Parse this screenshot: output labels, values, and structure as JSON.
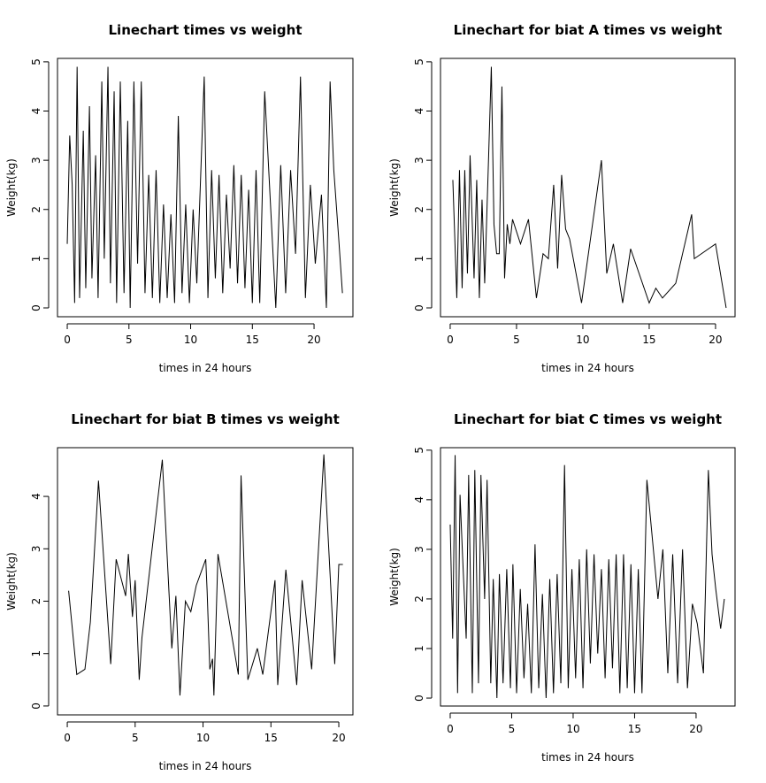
{
  "chart_data": [
    {
      "type": "line",
      "title": "Linechart times vs weight",
      "xlabel": "times in 24 hours",
      "ylabel": "Weight(kg)",
      "color": "#000000",
      "x": [
        0.0,
        0.2,
        0.4,
        0.6,
        0.8,
        1.0,
        1.3,
        1.5,
        1.8,
        2.0,
        2.3,
        2.5,
        2.8,
        3.0,
        3.3,
        3.5,
        3.8,
        4.0,
        4.3,
        4.6,
        4.9,
        5.1,
        5.4,
        5.7,
        6.0,
        6.3,
        6.6,
        6.9,
        7.2,
        7.5,
        7.8,
        8.1,
        8.4,
        8.7,
        9.0,
        9.3,
        9.6,
        9.9,
        10.2,
        10.5,
        10.8,
        11.1,
        11.4,
        11.7,
        12.0,
        12.3,
        12.6,
        12.9,
        13.2,
        13.5,
        13.8,
        14.1,
        14.4,
        14.7,
        15.0,
        15.3,
        15.6,
        16.0,
        16.9,
        17.3,
        17.7,
        18.1,
        18.5,
        18.9,
        19.3,
        19.7,
        20.1,
        20.6,
        21.0,
        21.3,
        21.6,
        22.0,
        22.3
      ],
      "values": [
        1.3,
        3.5,
        2.5,
        0.1,
        4.9,
        0.2,
        3.6,
        0.4,
        4.1,
        0.6,
        3.1,
        0.2,
        4.6,
        1.0,
        4.9,
        0.5,
        4.4,
        0.1,
        4.6,
        0.3,
        3.8,
        0.0,
        4.6,
        0.9,
        4.6,
        0.3,
        2.7,
        0.2,
        2.8,
        0.1,
        2.1,
        0.2,
        1.9,
        0.1,
        3.9,
        0.3,
        2.1,
        0.1,
        2.0,
        0.5,
        2.6,
        4.7,
        0.2,
        2.8,
        0.6,
        2.7,
        0.3,
        2.3,
        0.8,
        2.9,
        0.5,
        2.7,
        0.4,
        2.4,
        0.1,
        2.8,
        0.1,
        4.4,
        0.0,
        2.9,
        0.3,
        2.8,
        1.1,
        4.7,
        0.2,
        2.5,
        0.9,
        2.3,
        0.0,
        4.6,
        2.8,
        1.4,
        0.3
      ],
      "xlim": [
        -0.79,
        23.15
      ],
      "ylim": [
        -0.18,
        5.07
      ],
      "xticks": [
        0,
        5,
        10,
        15,
        20
      ],
      "yticks": [
        0,
        1,
        2,
        3,
        4,
        5
      ]
    },
    {
      "type": "line",
      "title": "Linechart for biat A times vs weight",
      "xlabel": "times in 24 hours",
      "ylabel": "Weight(kg)",
      "color": "#000000",
      "x": [
        0.2,
        0.5,
        0.7,
        0.9,
        1.1,
        1.3,
        1.5,
        1.8,
        2.0,
        2.2,
        2.4,
        2.6,
        2.9,
        3.1,
        3.3,
        3.5,
        3.7,
        3.9,
        4.1,
        4.3,
        4.5,
        4.7,
        5.3,
        5.9,
        6.5,
        7.0,
        7.4,
        7.8,
        8.1,
        8.4,
        8.7,
        9.0,
        9.9,
        11.4,
        11.8,
        12.3,
        13.0,
        13.6,
        15.0,
        15.5,
        16.0,
        17.0,
        18.2,
        18.4,
        20.0,
        20.8
      ],
      "values": [
        2.6,
        0.2,
        2.8,
        0.4,
        2.8,
        0.7,
        3.1,
        0.6,
        2.6,
        0.2,
        2.2,
        0.5,
        3.1,
        4.9,
        1.7,
        1.1,
        1.1,
        4.5,
        0.6,
        1.7,
        1.3,
        1.8,
        1.3,
        1.8,
        0.2,
        1.1,
        1.0,
        2.5,
        0.8,
        2.7,
        1.6,
        1.4,
        0.1,
        3.0,
        0.7,
        1.3,
        0.1,
        1.2,
        0.1,
        0.4,
        0.2,
        0.5,
        1.9,
        1.0,
        1.3,
        0.0
      ],
      "xlim": [
        -0.73,
        21.47
      ],
      "ylim": [
        -0.18,
        5.07
      ],
      "xticks": [
        0,
        5,
        10,
        15,
        20
      ],
      "yticks": [
        0,
        1,
        2,
        3,
        4,
        5
      ]
    },
    {
      "type": "line",
      "title": "Linechart for biat B times vs weight",
      "xlabel": "times in 24 hours",
      "ylabel": "Weight(kg)",
      "color": "#000000",
      "x": [
        0.1,
        0.7,
        1.3,
        1.7,
        2.3,
        3.2,
        3.6,
        4.3,
        4.5,
        4.8,
        5.0,
        5.3,
        5.5,
        7.0,
        7.7,
        8.0,
        8.3,
        8.7,
        9.1,
        9.5,
        10.2,
        10.3,
        10.5,
        10.7,
        10.8,
        11.1,
        12.6,
        12.8,
        13.3,
        14.0,
        14.4,
        15.3,
        15.5,
        16.1,
        16.9,
        17.3,
        18.0,
        18.9,
        19.7,
        20.0,
        20.3
      ],
      "values": [
        2.2,
        0.6,
        0.7,
        1.6,
        4.3,
        0.8,
        2.8,
        2.1,
        2.9,
        1.7,
        2.4,
        0.5,
        1.3,
        4.7,
        1.1,
        2.1,
        0.2,
        2.0,
        1.8,
        2.3,
        2.8,
        2.2,
        0.7,
        0.9,
        0.2,
        2.9,
        0.6,
        4.4,
        0.5,
        1.1,
        0.6,
        2.4,
        0.4,
        2.6,
        0.4,
        2.4,
        0.7,
        4.8,
        0.8,
        2.7,
        2.7
      ],
      "xlim": [
        -0.72,
        21.04
      ],
      "ylim": [
        -0.17,
        4.93
      ],
      "xticks": [
        0,
        5,
        10,
        15,
        20
      ],
      "yticks": [
        0,
        1,
        2,
        3,
        4
      ]
    },
    {
      "type": "line",
      "title": "Linechart for biat C times vs weight",
      "xlabel": "times in 24 hours",
      "ylabel": "Weight(kg)",
      "color": "#000000",
      "x": [
        0.0,
        0.2,
        0.4,
        0.6,
        0.8,
        1.0,
        1.3,
        1.5,
        1.8,
        2.0,
        2.3,
        2.5,
        2.8,
        3.0,
        3.3,
        3.5,
        3.8,
        4.0,
        4.3,
        4.6,
        4.9,
        5.1,
        5.4,
        5.7,
        6.0,
        6.3,
        6.6,
        6.9,
        7.2,
        7.5,
        7.8,
        8.1,
        8.4,
        8.7,
        9.0,
        9.3,
        9.6,
        9.9,
        10.2,
        10.5,
        10.8,
        11.1,
        11.4,
        11.7,
        12.0,
        12.3,
        12.6,
        12.9,
        13.2,
        13.5,
        13.8,
        14.1,
        14.4,
        14.7,
        15.0,
        15.3,
        15.6,
        16.0,
        16.9,
        17.3,
        17.7,
        18.1,
        18.5,
        18.9,
        19.3,
        19.7,
        20.1,
        20.6,
        21.0,
        21.3,
        21.6,
        22.0,
        22.3
      ],
      "values": [
        3.5,
        1.2,
        4.9,
        0.1,
        4.1,
        2.9,
        1.2,
        4.5,
        0.1,
        4.6,
        0.3,
        4.5,
        2.0,
        4.4,
        0.3,
        2.4,
        0.0,
        2.5,
        0.3,
        2.6,
        0.2,
        2.7,
        0.1,
        2.2,
        0.4,
        1.9,
        0.1,
        3.1,
        0.2,
        2.1,
        0.0,
        2.4,
        0.1,
        2.5,
        0.3,
        4.7,
        0.2,
        2.6,
        0.4,
        2.8,
        0.2,
        3.0,
        0.7,
        2.9,
        0.9,
        2.6,
        0.4,
        2.8,
        0.6,
        2.9,
        0.1,
        2.9,
        0.2,
        2.7,
        0.1,
        2.6,
        0.1,
        4.4,
        2.0,
        3.0,
        0.5,
        2.9,
        0.3,
        3.0,
        0.2,
        1.9,
        1.5,
        0.5,
        4.6,
        2.9,
        2.2,
        1.4,
        2.0
      ],
      "xlim": [
        -0.79,
        23.17
      ],
      "ylim": [
        -0.16,
        5.05
      ],
      "xticks": [
        0,
        5,
        10,
        15,
        20
      ],
      "yticks": [
        0,
        1,
        2,
        3,
        4,
        5
      ]
    }
  ]
}
